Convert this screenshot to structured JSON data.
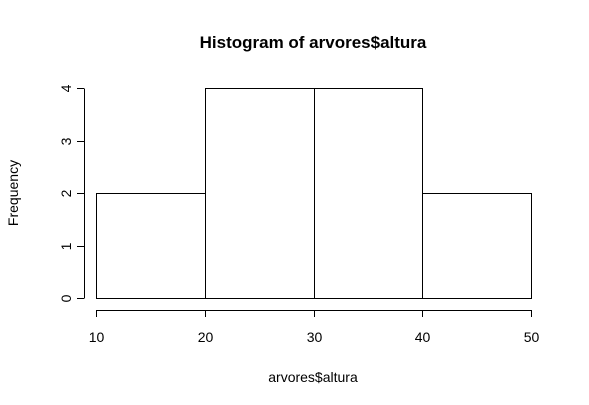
{
  "chart_data": {
    "type": "bar",
    "title": "Histogram of arvores$altura",
    "xlabel": "arvores$altura",
    "ylabel": "Frequency",
    "bins": [
      {
        "start": 10,
        "end": 20,
        "count": 2
      },
      {
        "start": 20,
        "end": 30,
        "count": 4
      },
      {
        "start": 30,
        "end": 40,
        "count": 4
      },
      {
        "start": 40,
        "end": 50,
        "count": 2
      }
    ],
    "xlim": [
      10,
      50
    ],
    "ylim": [
      0,
      4
    ],
    "x_ticks": [
      10,
      20,
      30,
      40,
      50
    ],
    "y_ticks": [
      0,
      1,
      2,
      3,
      4
    ],
    "bar_fill": "#ffffff",
    "bar_stroke": "#000000",
    "grid": false,
    "legend": "none"
  }
}
